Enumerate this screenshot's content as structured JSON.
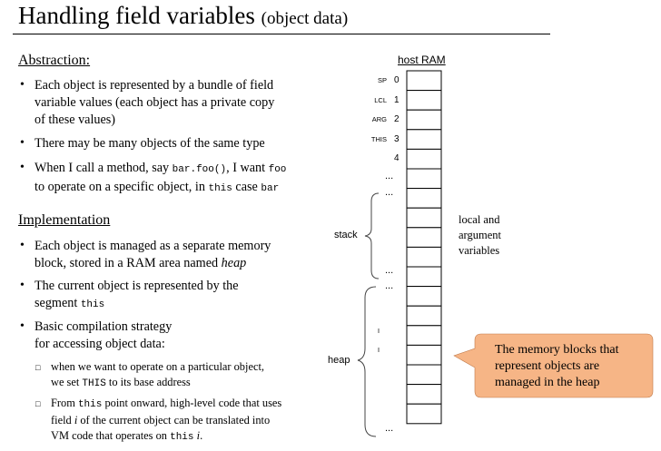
{
  "title": {
    "main": "Handling field variables",
    "sub": "(object data)"
  },
  "abstraction": {
    "heading": "Abstraction:",
    "bullets": [
      [
        "Each object is represented by a bundle of field",
        "variable values (each object has a private copy",
        "of these values)"
      ],
      [
        "There may be many objects of the same type"
      ],
      [
        "When I call a method, say bar.foo(), I want foo",
        "to operate on a specific object, in this case bar"
      ]
    ]
  },
  "implementation": {
    "heading": "Implementation",
    "bullets": [
      [
        "Each object is managed as a separate memory",
        "block, stored in a RAM area named heap"
      ],
      [
        "The current object is represented by the",
        "segment this"
      ],
      [
        "Basic compilation strategy",
        "for accessing object data:"
      ]
    ],
    "sub_bullets": [
      [
        "when we want to operate on a particular object,",
        "we set THIS to its base address"
      ],
      [
        "From this point onward, high-level code that uses",
        "field i of the current object can be translated into",
        "VM code that operates on this i."
      ]
    ]
  },
  "ram": {
    "title": "host RAM",
    "registers": [
      {
        "label": "SP",
        "index": "0"
      },
      {
        "label": "LCL",
        "index": "1"
      },
      {
        "label": "ARG",
        "index": "2"
      },
      {
        "label": "THIS",
        "index": "3"
      },
      {
        "label": "",
        "index": "4"
      }
    ],
    "ellipsis": "...",
    "stack_label": "stack",
    "heap_label": "heap",
    "local_label": "local and\nargument\nvariables"
  },
  "callout": {
    "text": "The memory blocks that\nrepresent objects are\nmanaged in the heap",
    "color": "#f6b586"
  },
  "colors": {
    "text": "#000000",
    "background": "#ffffff"
  }
}
